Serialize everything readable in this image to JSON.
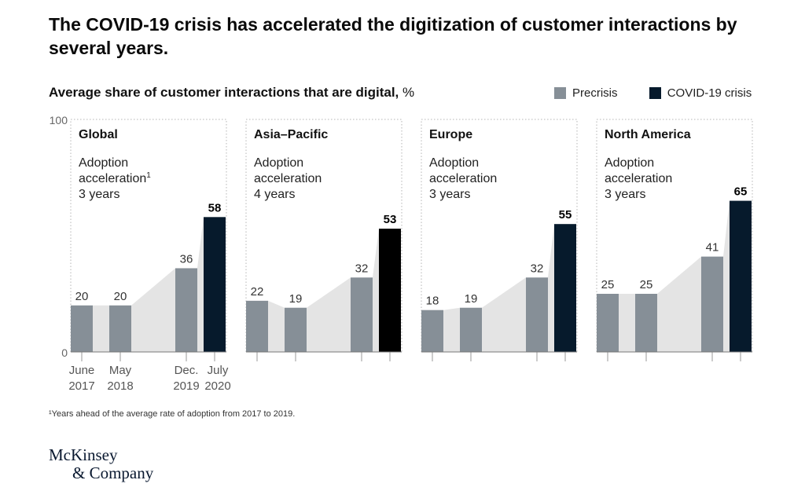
{
  "title": "The COVID-19 crisis has accelerated the digitization of customer interactions by several years.",
  "subtitle": "Average share of customer interactions that are digital,",
  "subtitle_unit": "%",
  "legend": [
    {
      "label": "Precrisis",
      "color": "#868f97"
    },
    {
      "label": "COVID-19 crisis",
      "color": "#061a2c"
    }
  ],
  "footnote": "¹Years ahead of the average rate of adoption from 2017 to 2019.",
  "logo": {
    "line1": "McKinsey",
    "line2": "& Company"
  },
  "chart_data": {
    "type": "bar",
    "ylim": [
      0,
      100
    ],
    "y_ticks": [
      "100",
      "0"
    ],
    "x_tick_labels": [
      {
        "line1": "June",
        "line2": "2017"
      },
      {
        "line1": "May",
        "line2": "2018"
      },
      {
        "line1": "Dec.",
        "line2": "2019"
      },
      {
        "line1": "July",
        "line2": "2020"
      }
    ],
    "panels": [
      {
        "region": "Global",
        "note_line1": "Adoption",
        "note_line2": "acceleration",
        "note_sup": "1",
        "note_line3": "3 years",
        "values": [
          20,
          20,
          36,
          58
        ],
        "labels": [
          "20",
          "20",
          "36",
          "58"
        ],
        "crisis_color": "#061a2c"
      },
      {
        "region": "Asia–Pacific",
        "note_line1": "Adoption",
        "note_line2": "acceleration",
        "note_sup": "",
        "note_line3": "4 years",
        "values": [
          22,
          19,
          32,
          53
        ],
        "labels": [
          "22",
          "19",
          "32",
          "53"
        ],
        "crisis_color": "#000000"
      },
      {
        "region": "Europe",
        "note_line1": "Adoption",
        "note_line2": "acceleration",
        "note_sup": "",
        "note_line3": "3 years",
        "values": [
          18,
          19,
          32,
          55
        ],
        "labels": [
          "18",
          "19",
          "32",
          "55"
        ],
        "crisis_color": "#061a2c"
      },
      {
        "region": "North America",
        "note_line1": "Adoption",
        "note_line2": "acceleration",
        "note_sup": "",
        "note_line3": "3 years",
        "values": [
          25,
          25,
          41,
          65
        ],
        "labels": [
          "25",
          "25",
          "41",
          "65"
        ],
        "crisis_color": "#061a2c"
      }
    ],
    "colors": {
      "precrisis": "#868f97",
      "area": "#e4e4e4"
    }
  }
}
